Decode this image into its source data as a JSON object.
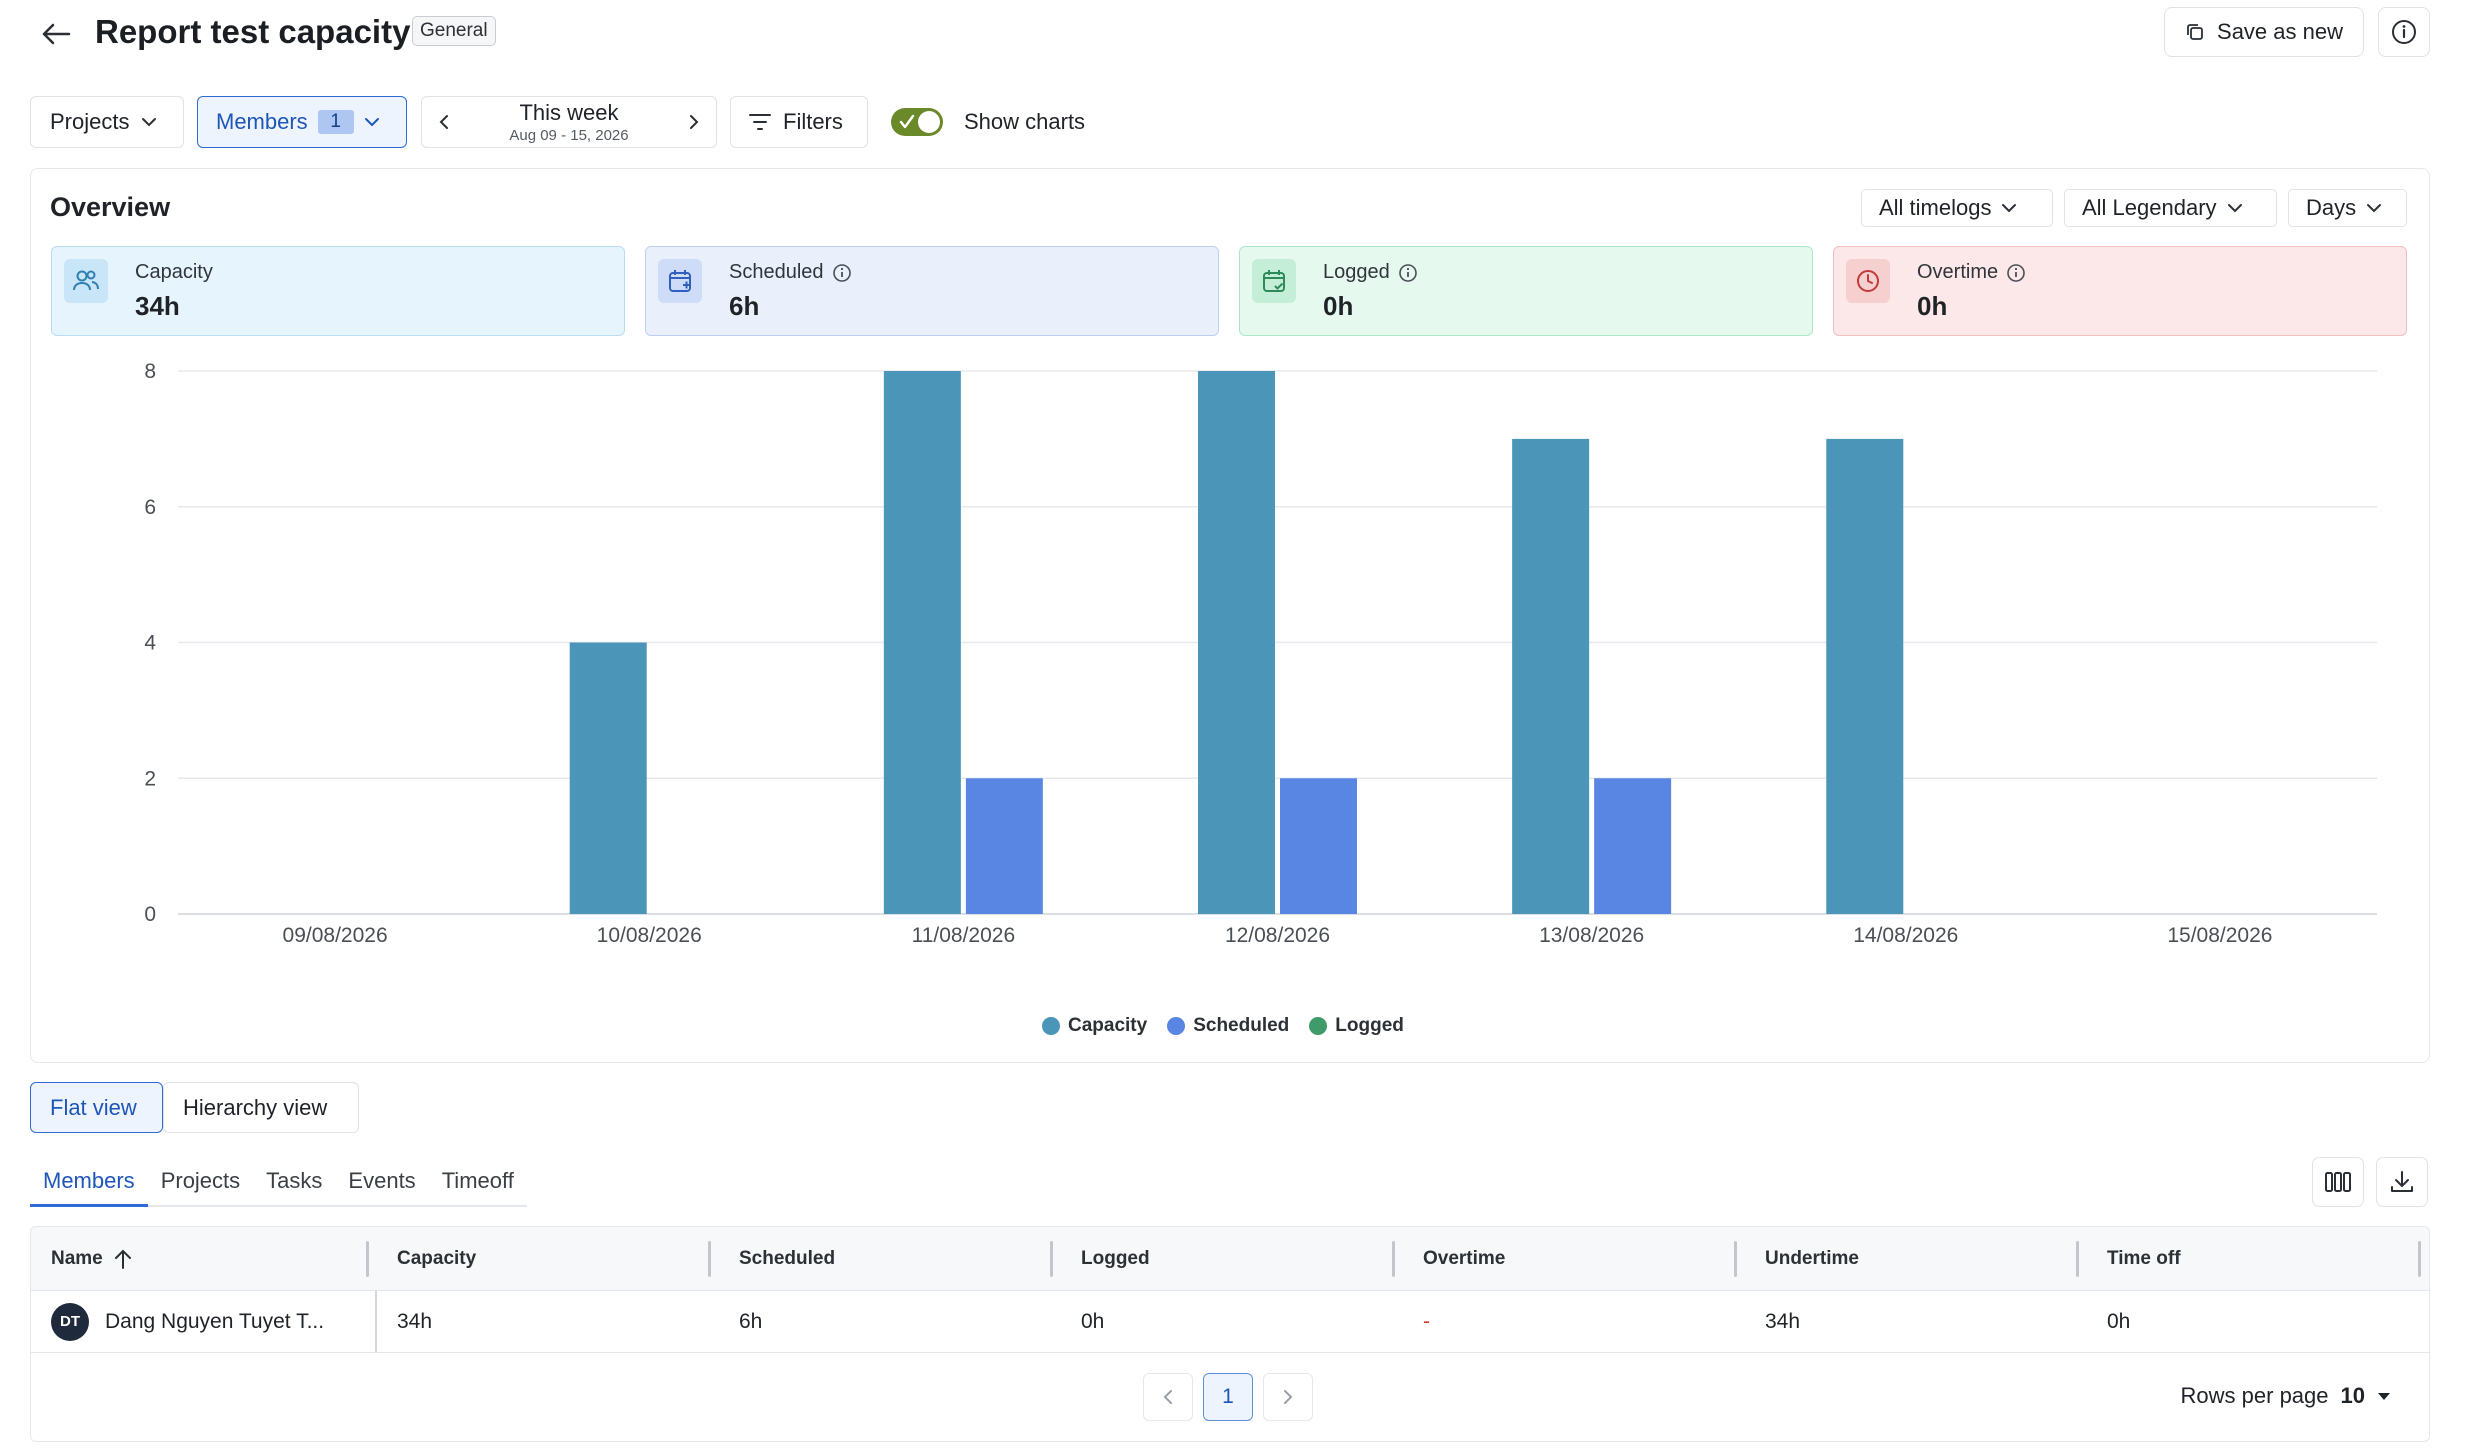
{
  "header": {
    "title": "Report test capacity",
    "badge": "General",
    "save_as_new": "Save as new"
  },
  "toolbar": {
    "projects": "Projects",
    "members": "Members",
    "members_count": "1",
    "week_title": "This week",
    "week_range": "Aug 09 - 15, 2026",
    "filters": "Filters",
    "show_charts": "Show charts",
    "show_charts_on": true
  },
  "overview": {
    "title": "Overview",
    "timelogs": "All timelogs",
    "legendary": "All Legendary",
    "granularity": "Days",
    "stats": [
      {
        "label": "Capacity",
        "value": "34h",
        "icon": "users-icon",
        "color": "#e6f4fd"
      },
      {
        "label": "Scheduled",
        "value": "6h",
        "icon": "calendar-plus-icon",
        "color": "#e9f0fc"
      },
      {
        "label": "Logged",
        "value": "0h",
        "icon": "calendar-check-icon",
        "color": "#e5f9ef"
      },
      {
        "label": "Overtime",
        "value": "0h",
        "icon": "clock-icon",
        "color": "#fce8e8"
      }
    ]
  },
  "chart_data": {
    "type": "bar",
    "categories": [
      "09/08/2026",
      "10/08/2026",
      "11/08/2026",
      "12/08/2026",
      "13/08/2026",
      "14/08/2026",
      "15/08/2026"
    ],
    "series": [
      {
        "name": "Capacity",
        "color": "#4b95b9",
        "values": [
          0,
          4,
          8,
          8,
          7,
          7,
          0
        ]
      },
      {
        "name": "Scheduled",
        "color": "#5a86e3",
        "values": [
          0,
          0,
          2,
          2,
          2,
          0,
          0
        ]
      },
      {
        "name": "Logged",
        "color": "#3f9c6a",
        "values": [
          0,
          0,
          0,
          0,
          0,
          0,
          0
        ]
      }
    ],
    "ylim": [
      0,
      8
    ],
    "yticks": [
      "0",
      "2",
      "4",
      "6",
      "8"
    ],
    "grid": true,
    "legend": "bottom-center"
  },
  "views": {
    "flat": "Flat view",
    "hierarchy": "Hierarchy view"
  },
  "tabs": [
    "Members",
    "Projects",
    "Tasks",
    "Events",
    "Timeoff"
  ],
  "table": {
    "columns": [
      "Name",
      "Capacity",
      "Scheduled",
      "Logged",
      "Overtime",
      "Undertime",
      "Time off"
    ],
    "rows": [
      {
        "initials": "DT",
        "name": "Dang Nguyen Tuyet T...",
        "capacity": "34h",
        "scheduled": "6h",
        "logged": "0h",
        "overtime": "-",
        "undertime": "34h",
        "timeoff": "0h"
      }
    ]
  },
  "pagination": {
    "current": "1",
    "rows_per_page_label": "Rows per page",
    "rows_per_page": "10"
  }
}
